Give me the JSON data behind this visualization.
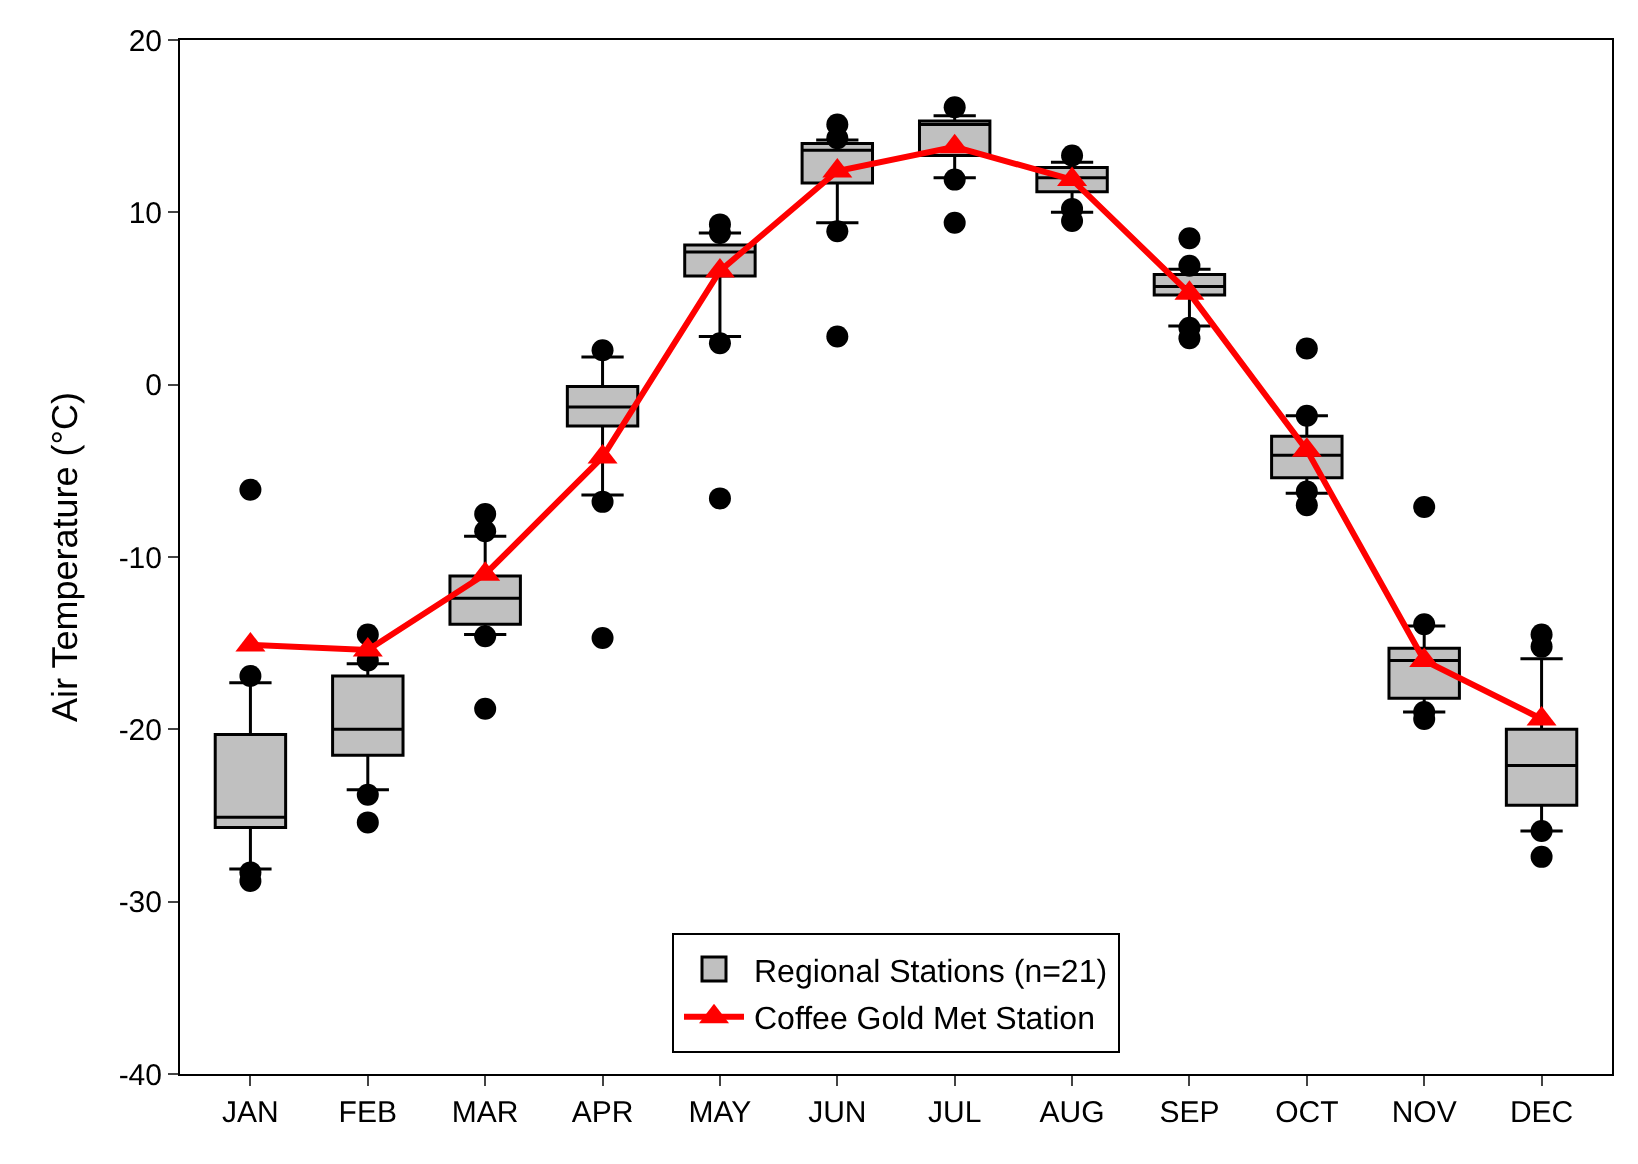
{
  "chart_data": {
    "type": "box",
    "ylabel": "Air Temperature (°C)",
    "categories": [
      "JAN",
      "FEB",
      "MAR",
      "APR",
      "MAY",
      "JUN",
      "JUL",
      "AUG",
      "SEP",
      "OCT",
      "NOV",
      "DEC"
    ],
    "ylim": [
      -40,
      20
    ],
    "yticks": [
      -40,
      -30,
      -20,
      -10,
      0,
      10,
      20
    ],
    "legend": "bottom",
    "marker": "triangle",
    "series": [
      {
        "name": "Regional Stations (n=21)",
        "color": "#c0c0c0",
        "boxes": [
          {
            "low": -28.1,
            "q1": -25.7,
            "median": -25.1,
            "q3": -20.3,
            "high": -17.3,
            "outliers": [
              -6.1,
              -16.9,
              -28.3,
              -28.8
            ]
          },
          {
            "low": -23.5,
            "q1": -21.5,
            "median": -20.0,
            "q3": -16.9,
            "high": -16.2,
            "outliers": [
              -14.5,
              -16.0,
              -23.8,
              -25.4
            ]
          },
          {
            "low": -14.5,
            "q1": -13.9,
            "median": -12.4,
            "q3": -11.1,
            "high": -8.8,
            "outliers": [
              -7.5,
              -8.5,
              -14.6,
              -18.8
            ]
          },
          {
            "low": -6.4,
            "q1": -2.4,
            "median": -1.3,
            "q3": -0.1,
            "high": 1.6,
            "outliers": [
              2.0,
              -6.8,
              -14.7
            ]
          },
          {
            "low": 2.8,
            "q1": 6.3,
            "median": 7.7,
            "q3": 8.1,
            "high": 8.8,
            "outliers": [
              9.3,
              8.8,
              2.4,
              -6.6
            ]
          },
          {
            "low": 9.4,
            "q1": 11.7,
            "median": 13.6,
            "q3": 14.0,
            "high": 14.2,
            "outliers": [
              15.1,
              14.3,
              8.9,
              2.8
            ]
          },
          {
            "low": 12.0,
            "q1": 13.3,
            "median": 15.1,
            "q3": 15.3,
            "high": 15.6,
            "outliers": [
              16.1,
              11.9,
              9.4
            ]
          },
          {
            "low": 10.0,
            "q1": 11.2,
            "median": 12.0,
            "q3": 12.6,
            "high": 12.9,
            "outliers": [
              13.3,
              10.2,
              9.5
            ]
          },
          {
            "low": 3.4,
            "q1": 5.2,
            "median": 5.7,
            "q3": 6.4,
            "high": 6.7,
            "outliers": [
              8.5,
              6.9,
              3.3,
              2.7
            ]
          },
          {
            "low": -6.3,
            "q1": -5.4,
            "median": -4.1,
            "q3": -3.0,
            "high": -1.8,
            "outliers": [
              2.1,
              -1.8,
              -6.2,
              -7.0
            ]
          },
          {
            "low": -19.0,
            "q1": -18.2,
            "median": -16.0,
            "q3": -15.3,
            "high": -14.0,
            "outliers": [
              -7.1,
              -13.9,
              -19.0,
              -19.4
            ]
          },
          {
            "low": -25.9,
            "q1": -24.4,
            "median": -22.1,
            "q3": -20.0,
            "high": -15.9,
            "outliers": [
              -14.5,
              -15.2,
              -25.9,
              -27.4
            ]
          }
        ]
      },
      {
        "name": "Coffee Gold Met Station",
        "type": "line",
        "color": "#ff0000",
        "values": [
          -15.1,
          -15.4,
          -11.0,
          -4.2,
          6.6,
          12.4,
          13.8,
          11.9,
          5.3,
          -3.8,
          -16.0,
          -19.4
        ]
      }
    ]
  }
}
